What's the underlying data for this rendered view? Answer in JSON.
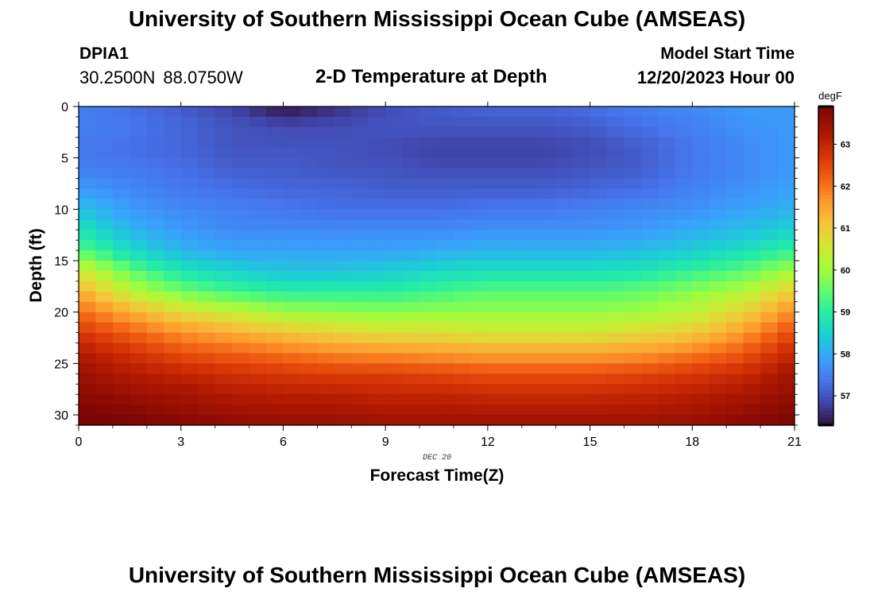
{
  "header": {
    "title": "University of Southern Mississippi Ocean Cube (AMSEAS)",
    "station": "DPIA1",
    "latitude": "30.2500N",
    "longitude": "88.0750W",
    "subtitle": "2-D Temperature at Depth",
    "model_start_label": "Model Start Time",
    "model_start_value": "12/20/2023 Hour 00"
  },
  "footer": {
    "title": "University of Southern Mississippi Ocean Cube (AMSEAS)"
  },
  "chart_data": {
    "type": "heatmap",
    "title": "2-D Temperature at Depth",
    "xlabel": "Forecast Time(Z)",
    "ylabel": "Depth (ft)",
    "xlim": [
      0,
      21
    ],
    "ylim": [
      0,
      31
    ],
    "y_inverted": true,
    "x_ticks": [
      0,
      3,
      6,
      9,
      12,
      15,
      18,
      21
    ],
    "y_ticks": [
      0,
      5,
      10,
      15,
      20,
      25,
      30
    ],
    "date_annotation": "DEC 20",
    "colorbar": {
      "unit": "degF",
      "min": 56.3,
      "max": 63.9,
      "ticks": [
        57,
        58,
        59,
        60,
        61,
        62,
        63
      ]
    },
    "time_hours": [
      0,
      1.5,
      3,
      4.5,
      6,
      7.5,
      9,
      10.5,
      12,
      13.5,
      15,
      16.5,
      18,
      19.5,
      21
    ],
    "depth_ft": [
      0,
      2,
      4,
      6,
      8,
      10,
      12,
      14,
      16,
      18,
      20,
      22,
      24,
      26,
      28,
      30,
      31
    ],
    "temperature_degF": [
      [
        57.5,
        57.3,
        57.1,
        56.8,
        56.3,
        56.6,
        56.9,
        57.1,
        57.2,
        57.2,
        57.3,
        57.5,
        57.6,
        57.8,
        57.8
      ],
      [
        57.5,
        57.4,
        57.2,
        57.0,
        56.9,
        56.9,
        57.0,
        57.0,
        57.0,
        57.0,
        57.1,
        57.3,
        57.5,
        57.7,
        57.8
      ],
      [
        57.4,
        57.3,
        57.2,
        57.0,
        57.0,
        57.0,
        56.9,
        56.8,
        56.8,
        56.8,
        56.9,
        57.1,
        57.4,
        57.6,
        57.8
      ],
      [
        57.5,
        57.4,
        57.3,
        57.1,
        57.1,
        57.0,
        57.0,
        56.9,
        56.9,
        56.9,
        57.0,
        57.1,
        57.4,
        57.6,
        57.8
      ],
      [
        57.8,
        57.6,
        57.4,
        57.3,
        57.2,
        57.2,
        57.1,
        57.1,
        57.1,
        57.1,
        57.2,
        57.3,
        57.5,
        57.7,
        57.9
      ],
      [
        58.3,
        57.8,
        57.6,
        57.5,
        57.4,
        57.3,
        57.3,
        57.3,
        57.4,
        57.4,
        57.5,
        57.6,
        57.7,
        57.9,
        58.1
      ],
      [
        58.8,
        58.1,
        57.8,
        57.6,
        57.6,
        57.6,
        57.6,
        57.6,
        57.7,
        57.7,
        57.7,
        57.8,
        58.0,
        58.2,
        58.5
      ],
      [
        59.4,
        58.6,
        58.1,
        57.9,
        57.9,
        57.9,
        57.9,
        58.0,
        58.1,
        58.1,
        58.1,
        58.2,
        58.4,
        58.7,
        59.1
      ],
      [
        60.6,
        59.5,
        58.8,
        58.5,
        58.3,
        58.3,
        58.4,
        58.6,
        58.7,
        58.7,
        58.7,
        58.8,
        59.1,
        59.4,
        60.1
      ],
      [
        61.4,
        60.3,
        59.6,
        59.2,
        59.0,
        59.0,
        59.0,
        59.2,
        59.4,
        59.4,
        59.4,
        59.5,
        59.8,
        60.2,
        61.0
      ],
      [
        62.1,
        61.4,
        60.8,
        60.4,
        60.0,
        59.9,
        59.8,
        59.9,
        59.9,
        59.9,
        59.9,
        60.0,
        60.3,
        60.9,
        61.8
      ],
      [
        62.7,
        62.2,
        61.7,
        61.4,
        61.1,
        60.9,
        60.7,
        60.7,
        60.6,
        60.6,
        60.6,
        60.8,
        61.0,
        61.6,
        62.5
      ],
      [
        63.2,
        62.8,
        62.4,
        62.2,
        62.0,
        61.8,
        61.7,
        61.6,
        61.5,
        61.5,
        61.5,
        61.6,
        61.9,
        62.3,
        63.0
      ],
      [
        63.5,
        63.2,
        63.0,
        62.8,
        62.7,
        62.6,
        62.6,
        62.5,
        62.4,
        62.4,
        62.4,
        62.5,
        62.7,
        62.9,
        63.4
      ],
      [
        63.7,
        63.5,
        63.4,
        63.2,
        63.1,
        63.1,
        63.0,
        63.0,
        62.9,
        62.9,
        62.9,
        63.0,
        63.1,
        63.3,
        63.6
      ],
      [
        63.9,
        63.8,
        63.6,
        63.5,
        63.4,
        63.4,
        63.3,
        63.3,
        63.3,
        63.3,
        63.3,
        63.3,
        63.4,
        63.6,
        63.8
      ],
      [
        63.9,
        63.9,
        63.8,
        63.7,
        63.6,
        63.6,
        63.5,
        63.5,
        63.5,
        63.5,
        63.5,
        63.5,
        63.6,
        63.7,
        63.9
      ]
    ]
  }
}
